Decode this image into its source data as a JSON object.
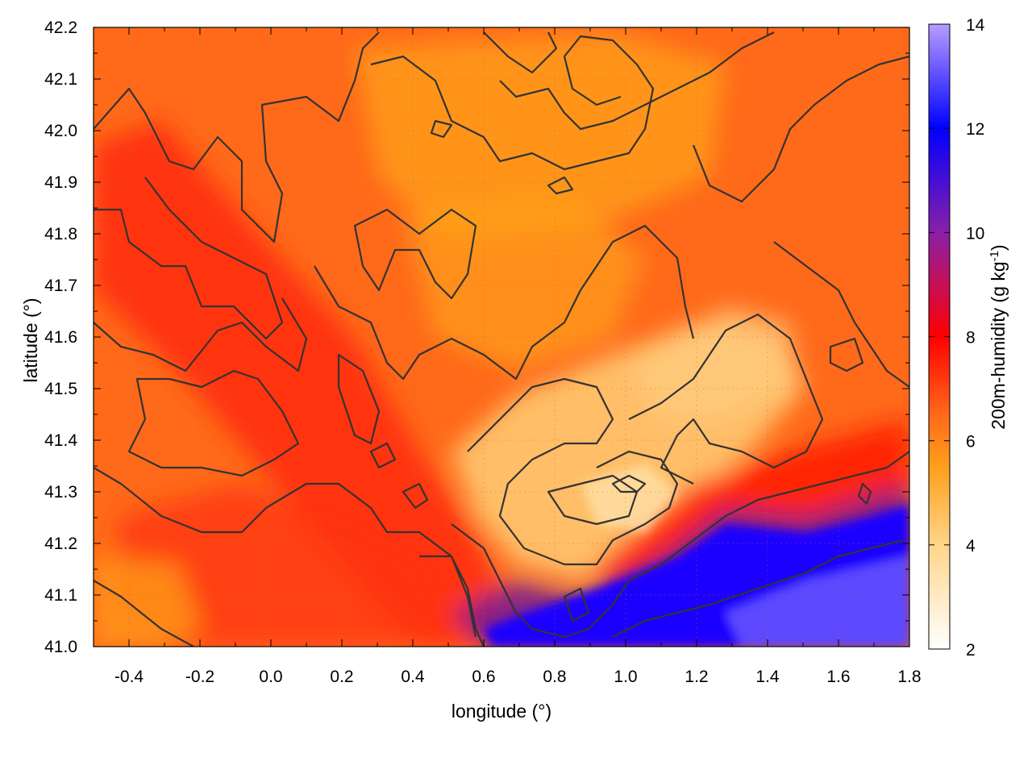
{
  "chart_data": {
    "type": "heatmap",
    "title": "",
    "xlabel": "longitude (°)",
    "ylabel": "latitude (°)",
    "colorbar_label": "200m-humidity (g kg⁻¹)",
    "colorbar_label_base": "200m-humidity (g kg",
    "colorbar_label_sup": "-1",
    "colorbar_label_close": ")",
    "xlim": [
      -0.5,
      1.8
    ],
    "ylim": [
      41.0,
      42.2
    ],
    "clim": [
      2,
      14
    ],
    "x_ticks": [
      "-0.4",
      "-0.2",
      "0.0",
      "0.2",
      "0.4",
      "0.6",
      "0.8",
      "1.0",
      "1.2",
      "1.4",
      "1.6",
      "1.8"
    ],
    "x_tick_values": [
      -0.4,
      -0.2,
      0.0,
      0.2,
      0.4,
      0.6,
      0.8,
      1.0,
      1.2,
      1.4,
      1.6,
      1.8
    ],
    "y_ticks": [
      "41.0",
      "41.1",
      "41.2",
      "41.3",
      "41.4",
      "41.5",
      "41.6",
      "41.7",
      "41.8",
      "41.9",
      "42.0",
      "42.1",
      "42.2"
    ],
    "y_tick_values": [
      41.0,
      41.1,
      41.2,
      41.3,
      41.4,
      41.5,
      41.6,
      41.7,
      41.8,
      41.9,
      42.0,
      42.1,
      42.2
    ],
    "colorbar_ticks": [
      "2",
      "4",
      "6",
      "8",
      "10",
      "12",
      "14"
    ],
    "colorbar_tick_values": [
      2,
      4,
      6,
      8,
      10,
      12,
      14
    ],
    "colormap": [
      {
        "value": 2,
        "color": "#ffffff"
      },
      {
        "value": 4,
        "color": "#ffd58a"
      },
      {
        "value": 5.5,
        "color": "#ff9f1a"
      },
      {
        "value": 6.5,
        "color": "#ff6a1a"
      },
      {
        "value": 8,
        "color": "#ff0000"
      },
      {
        "value": 10,
        "color": "#8b1fa8"
      },
      {
        "value": 12,
        "color": "#0000ff"
      },
      {
        "value": 14,
        "color": "#b89cff"
      }
    ],
    "field_features": [
      {
        "kind": "background",
        "value": 6.5
      },
      {
        "kind": "moist_band",
        "from": [
          -0.45,
          41.85
        ],
        "to": [
          0.6,
          41.05
        ],
        "value": 7.8
      },
      {
        "kind": "moist_band",
        "from": [
          -0.5,
          41.25
        ],
        "to": [
          0.55,
          41.05
        ],
        "value": 7.2
      },
      {
        "kind": "dry_region",
        "center": [
          0.95,
          41.4
        ],
        "value": 4.0
      },
      {
        "kind": "dry_region",
        "center": [
          1.1,
          41.55
        ],
        "value": 4.5
      },
      {
        "kind": "dry_region",
        "center": [
          0.6,
          41.8
        ],
        "value": 5.5
      },
      {
        "kind": "dry_region",
        "center": [
          0.8,
          42.0
        ],
        "value": 5.5
      },
      {
        "kind": "dry_region",
        "center": [
          -0.45,
          41.1
        ],
        "value": 5.5
      },
      {
        "kind": "humid_sea",
        "corner": "bottom-right",
        "from_lon": 0.6,
        "to_lat": 41.3,
        "value": 12.0
      },
      {
        "kind": "red_fringe",
        "along": "humid_sea_edge",
        "value": 8.5
      }
    ],
    "grid": true,
    "contours": true,
    "contour_color": "#333333",
    "legend": "colorbar-right"
  }
}
